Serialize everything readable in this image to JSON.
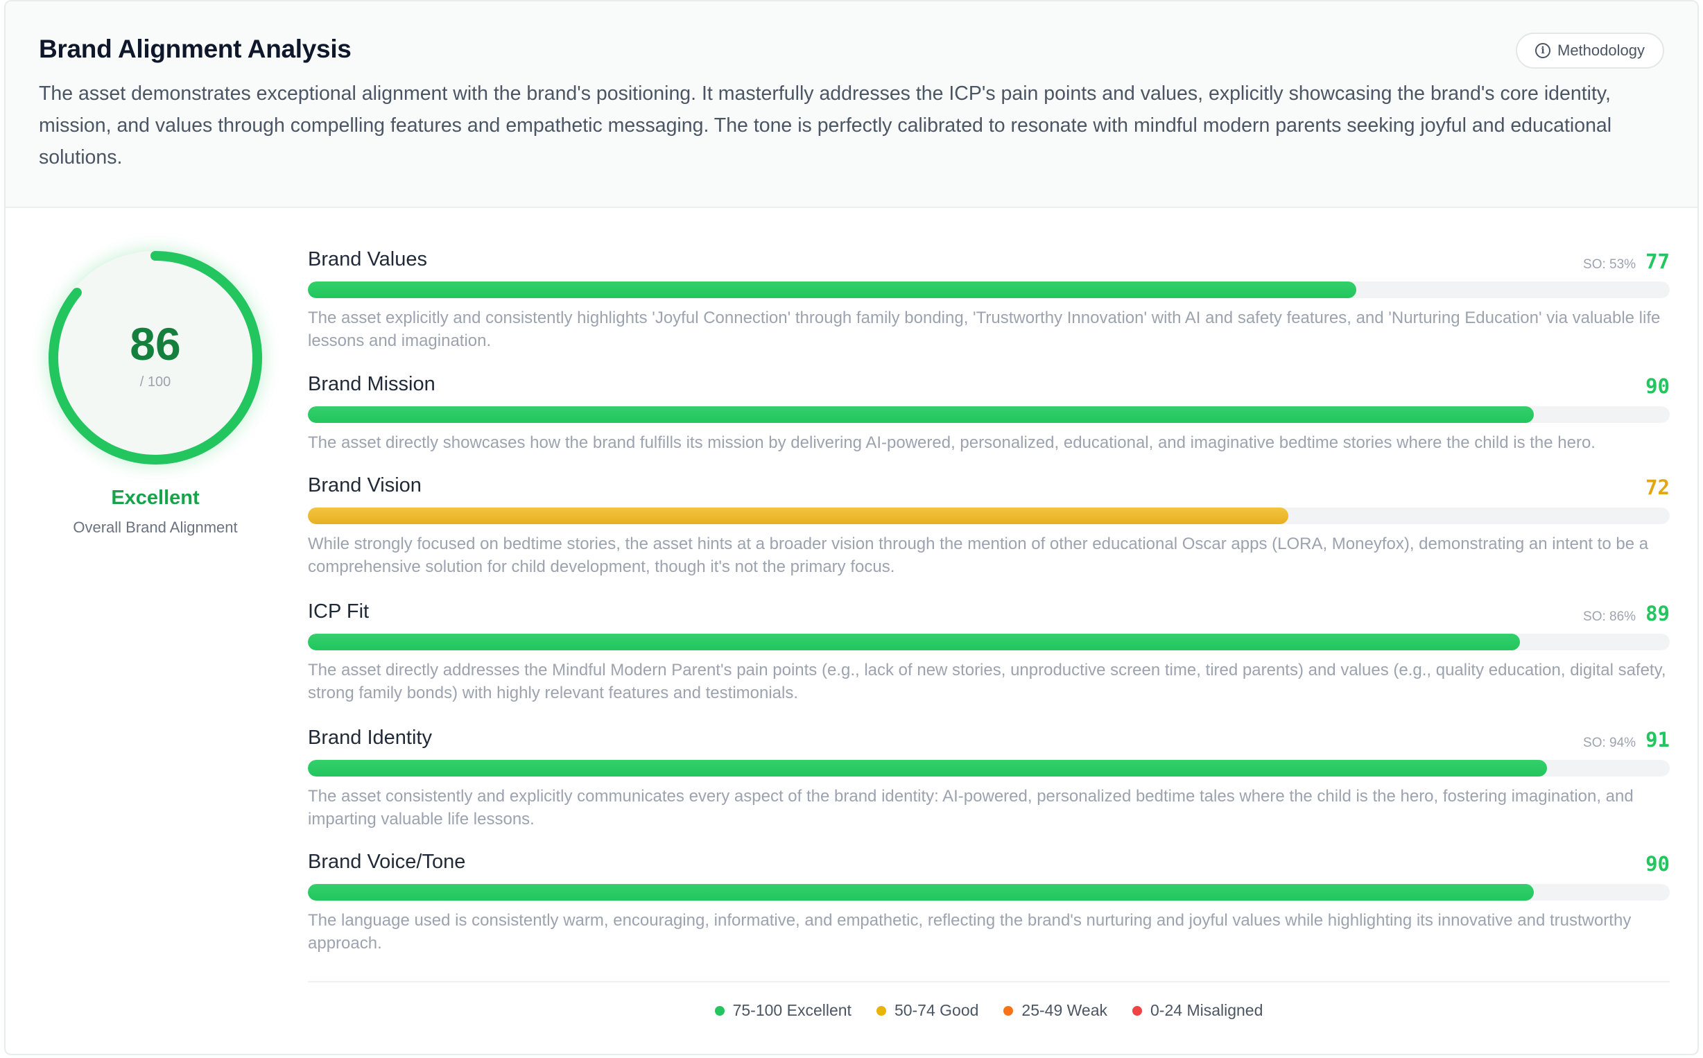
{
  "header": {
    "title": "Brand Alignment Analysis",
    "methodology_label": "Methodology",
    "summary": "The asset demonstrates exceptional alignment with the brand's positioning. It masterfully addresses the ICP's pain points and values, explicitly showcasing the brand's core identity, mission, and values through compelling features and empathetic messaging. The tone is perfectly calibrated to resonate with mindful modern parents seeking joyful and educational solutions."
  },
  "overall": {
    "score": "86",
    "max": "/ 100",
    "score_value": 86,
    "rating": "Excellent",
    "label": "Overall Brand Alignment",
    "color": "#22c55e"
  },
  "metrics": [
    {
      "name": "Brand Values",
      "so": "SO: 53%",
      "score": "77",
      "value": 77,
      "color": "#22c55e",
      "description": "The asset explicitly and consistently highlights 'Joyful Connection' through family bonding, 'Trustworthy Innovation' with AI and safety features, and 'Nurturing Education' via valuable life lessons and imagination."
    },
    {
      "name": "Brand Mission",
      "so": "",
      "score": "90",
      "value": 90,
      "color": "#22c55e",
      "description": "The asset directly showcases how the brand fulfills its mission by delivering AI-powered, personalized, educational, and imaginative bedtime stories where the child is the hero."
    },
    {
      "name": "Brand Vision",
      "so": "",
      "score": "72",
      "value": 72,
      "color": "#eab308",
      "description": "While strongly focused on bedtime stories, the asset hints at a broader vision through the mention of other educational Oscar apps (LORA, Moneyfox), demonstrating an intent to be a comprehensive solution for child development, though it's not the primary focus."
    },
    {
      "name": "ICP Fit",
      "so": "SO: 86%",
      "score": "89",
      "value": 89,
      "color": "#22c55e",
      "description": "The asset directly addresses the Mindful Modern Parent's pain points (e.g., lack of new stories, unproductive screen time, tired parents) and values (e.g., quality education, digital safety, strong family bonds) with highly relevant features and testimonials."
    },
    {
      "name": "Brand Identity",
      "so": "SO: 94%",
      "score": "91",
      "value": 91,
      "color": "#22c55e",
      "description": "The asset consistently and explicitly communicates every aspect of the brand identity: AI-powered, personalized bedtime tales where the child is the hero, fostering imagination, and imparting valuable life lessons."
    },
    {
      "name": "Brand Voice/Tone",
      "so": "",
      "score": "90",
      "value": 90,
      "color": "#22c55e",
      "description": "The language used is consistently warm, encouraging, informative, and empathetic, reflecting the brand's nurturing and joyful values while highlighting its innovative and trustworthy approach."
    }
  ],
  "legend": [
    {
      "label": "75-100 Excellent",
      "color": "#22c55e"
    },
    {
      "label": "50-74 Good",
      "color": "#eab308"
    },
    {
      "label": "25-49 Weak",
      "color": "#f97316"
    },
    {
      "label": "0-24 Misaligned",
      "color": "#ef4444"
    }
  ]
}
